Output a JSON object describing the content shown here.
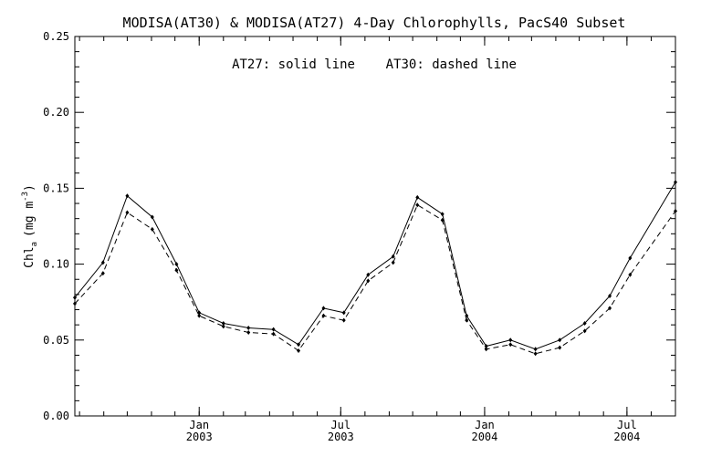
{
  "chart_data": {
    "type": "line",
    "title": "MODISA(AT30) & MODISA(AT27) 4-Day Chlorophylls, PacS40 Subset",
    "annotation": "AT27: solid line    AT30: dashed line",
    "ylabel": "Chl",
    "ylabel_subscript": "a",
    "ylabel_unit_open": "(mg m",
    "ylabel_unit_sup": "-3",
    "ylabel_unit_close": ")",
    "xlabel": "",
    "ylim": [
      0,
      0.25
    ],
    "yticks": [
      "0.00",
      "0.05",
      "0.10",
      "0.15",
      "0.20",
      "0.25"
    ],
    "x_axis_range": [
      "2002-07-26",
      "2004-09-01"
    ],
    "xticks": [
      {
        "date": "2003-01-01",
        "line1": "Jan",
        "line2": "2003"
      },
      {
        "date": "2003-07-01",
        "line1": "Jul",
        "line2": "2003"
      },
      {
        "date": "2004-01-01",
        "line1": "Jan",
        "line2": "2004"
      },
      {
        "date": "2004-07-01",
        "line1": "Jul",
        "line2": "2004"
      }
    ],
    "grid": false,
    "legend": "none",
    "x": [
      "2002-07-26",
      "2002-08-31",
      "2002-10-01",
      "2002-11-02",
      "2002-12-03",
      "2003-01-01",
      "2003-02-01",
      "2003-03-05",
      "2003-04-06",
      "2003-05-08",
      "2003-06-09",
      "2003-07-05",
      "2003-08-05",
      "2003-09-06",
      "2003-10-07",
      "2003-11-08",
      "2003-12-09",
      "2004-01-03",
      "2004-02-03",
      "2004-03-06",
      "2004-04-06",
      "2004-05-08",
      "2004-06-09",
      "2004-07-05",
      "2004-09-01"
    ],
    "series": [
      {
        "name": "AT27",
        "style": "solid",
        "color": "#000000",
        "values": [
          0.078,
          0.101,
          0.145,
          0.131,
          0.1,
          0.068,
          0.061,
          0.058,
          0.057,
          0.047,
          0.071,
          0.068,
          0.093,
          0.105,
          0.144,
          0.133,
          0.066,
          0.046,
          0.05,
          0.044,
          0.05,
          0.061,
          0.079,
          0.104,
          0.154
        ]
      },
      {
        "name": "AT30",
        "style": "dashed",
        "color": "#000000",
        "values": [
          0.074,
          0.094,
          0.134,
          0.123,
          0.096,
          0.066,
          0.059,
          0.055,
          0.054,
          0.043,
          0.066,
          0.063,
          0.089,
          0.101,
          0.139,
          0.129,
          0.063,
          0.044,
          0.047,
          0.041,
          0.045,
          0.056,
          0.071,
          0.093,
          0.135
        ]
      }
    ]
  }
}
